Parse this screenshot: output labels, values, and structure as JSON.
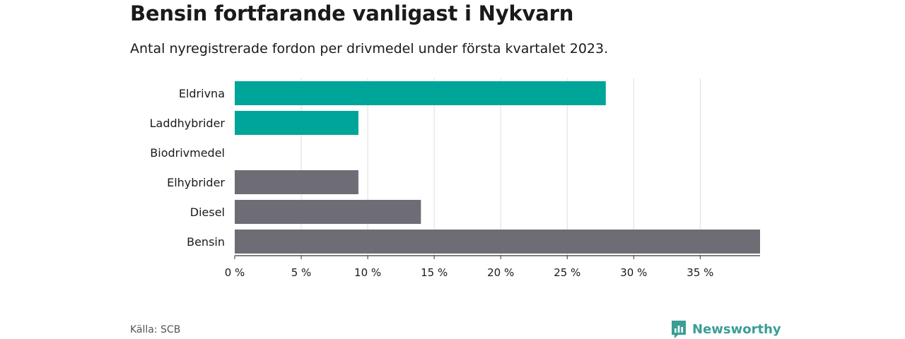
{
  "header": {
    "title": "Bensin fortfarande vanligast i Nykvarn",
    "subtitle": "Antal nyregistrerade fordon per drivmedel under första kvartalet 2023."
  },
  "footer": {
    "source": "Källa: SCB",
    "brand": "Newsworthy",
    "brand_icon": "bar-chart-icon"
  },
  "colors": {
    "highlight": "#00a599",
    "default": "#6e6d75",
    "grid": "#dddddd",
    "axis": "#333333",
    "brand": "#3a9e95"
  },
  "chart_data": {
    "type": "bar",
    "orientation": "horizontal",
    "categories": [
      "Eldrivna",
      "Laddhybrider",
      "Biodrivmedel",
      "Elhybrider",
      "Diesel",
      "Bensin"
    ],
    "values": [
      27.9,
      9.3,
      0,
      9.3,
      14.0,
      39.5
    ],
    "unit": "%",
    "bar_colors": [
      "highlight",
      "highlight",
      "highlight",
      "default",
      "default",
      "default"
    ],
    "xlim": [
      0,
      39.5
    ],
    "xticks": [
      0,
      5,
      10,
      15,
      20,
      25,
      30,
      35
    ],
    "xtick_labels": [
      "0 %",
      "5 %",
      "10 %",
      "15 %",
      "20 %",
      "25 %",
      "30 %",
      "35 %"
    ],
    "grid": true,
    "legend": "none",
    "xlabel": "",
    "ylabel": ""
  }
}
